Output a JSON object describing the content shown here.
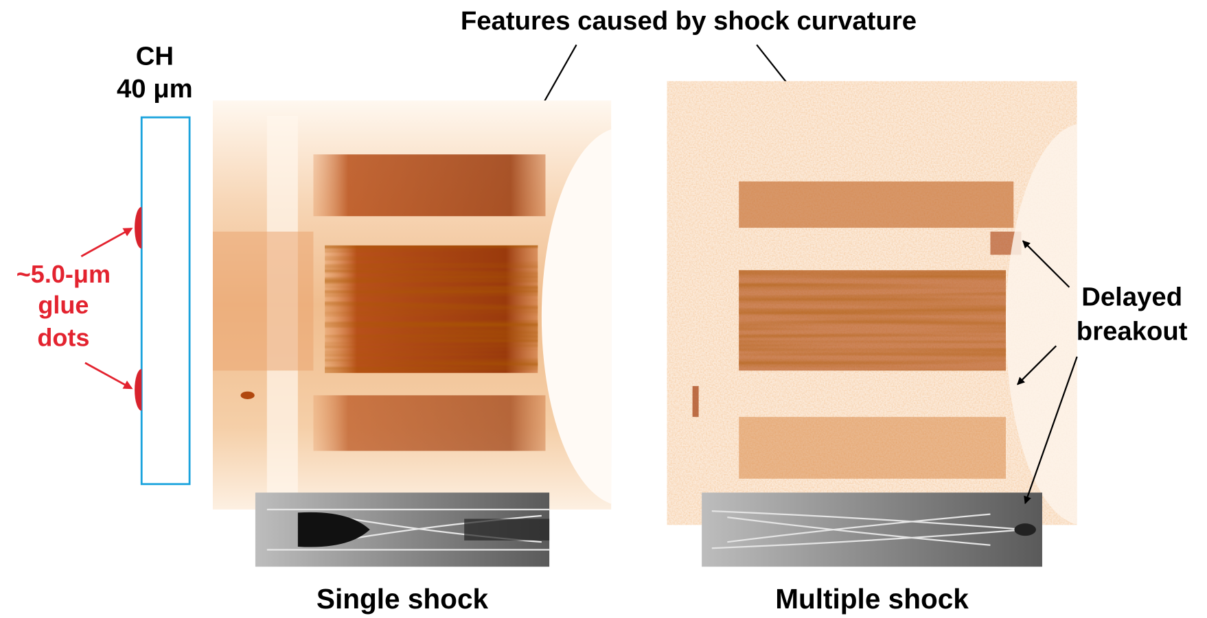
{
  "annotations": {
    "top": "Features caused by shock curvature",
    "target_material": "CH",
    "target_thickness": "40 μm",
    "glue_dots": [
      "~5.0-μm",
      "glue",
      "dots"
    ],
    "delayed_breakout": [
      "Delayed",
      "breakout"
    ]
  },
  "panels": [
    {
      "caption": "Single shock"
    },
    {
      "caption": "Multiple shock"
    }
  ]
}
